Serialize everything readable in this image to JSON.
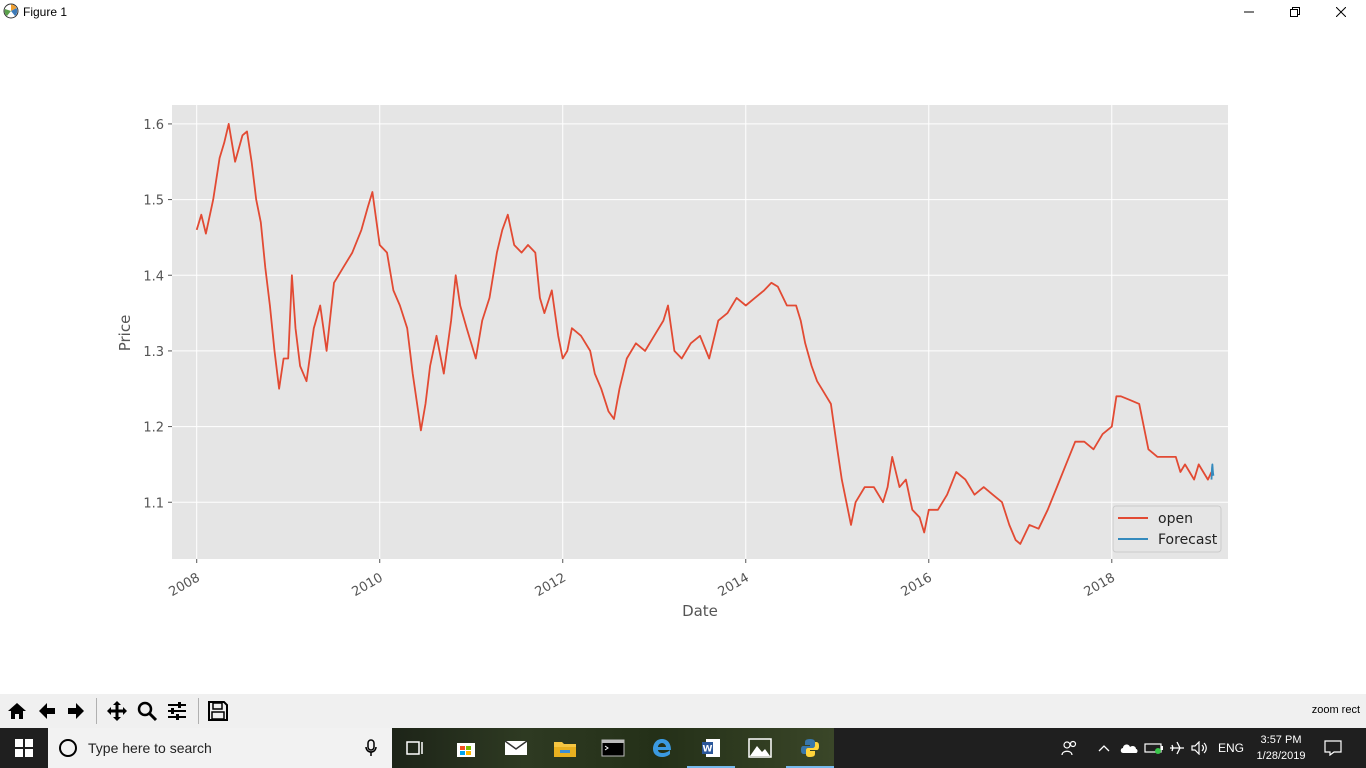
{
  "window": {
    "title": "Figure 1",
    "minimize_glyph": "—",
    "maximize_glyph": "❐",
    "close_glyph": "✕"
  },
  "chart_data": {
    "type": "line",
    "title": "",
    "xlabel": "Date",
    "ylabel": "Price",
    "xlim": [
      2007.73,
      2019.27
    ],
    "ylim": [
      1.025,
      1.625
    ],
    "xticks": [
      2008,
      2010,
      2012,
      2014,
      2016,
      2018
    ],
    "xtick_labels": [
      "2008",
      "2010",
      "2012",
      "2014",
      "2016",
      "2018"
    ],
    "yticks": [
      1.1,
      1.2,
      1.3,
      1.4,
      1.5,
      1.6
    ],
    "ytick_labels": [
      "1.1",
      "1.2",
      "1.3",
      "1.4",
      "1.5",
      "1.6"
    ],
    "grid": true,
    "legend_position": "lower-right",
    "series": [
      {
        "name": "open",
        "color": "#e24a33",
        "points": [
          [
            2008.0,
            1.46
          ],
          [
            2008.05,
            1.48
          ],
          [
            2008.1,
            1.455
          ],
          [
            2008.18,
            1.5
          ],
          [
            2008.25,
            1.555
          ],
          [
            2008.3,
            1.575
          ],
          [
            2008.35,
            1.6
          ],
          [
            2008.42,
            1.55
          ],
          [
            2008.5,
            1.585
          ],
          [
            2008.55,
            1.59
          ],
          [
            2008.6,
            1.55
          ],
          [
            2008.65,
            1.5
          ],
          [
            2008.7,
            1.47
          ],
          [
            2008.75,
            1.41
          ],
          [
            2008.8,
            1.36
          ],
          [
            2008.85,
            1.3
          ],
          [
            2008.9,
            1.25
          ],
          [
            2008.95,
            1.29
          ],
          [
            2009.0,
            1.29
          ],
          [
            2009.04,
            1.4
          ],
          [
            2009.08,
            1.33
          ],
          [
            2009.13,
            1.28
          ],
          [
            2009.2,
            1.26
          ],
          [
            2009.28,
            1.33
          ],
          [
            2009.35,
            1.36
          ],
          [
            2009.42,
            1.3
          ],
          [
            2009.5,
            1.39
          ],
          [
            2009.6,
            1.41
          ],
          [
            2009.7,
            1.43
          ],
          [
            2009.8,
            1.46
          ],
          [
            2009.87,
            1.49
          ],
          [
            2009.92,
            1.51
          ],
          [
            2010.0,
            1.44
          ],
          [
            2010.08,
            1.43
          ],
          [
            2010.15,
            1.38
          ],
          [
            2010.22,
            1.36
          ],
          [
            2010.3,
            1.33
          ],
          [
            2010.36,
            1.27
          ],
          [
            2010.42,
            1.22
          ],
          [
            2010.45,
            1.195
          ],
          [
            2010.5,
            1.23
          ],
          [
            2010.55,
            1.28
          ],
          [
            2010.62,
            1.32
          ],
          [
            2010.7,
            1.27
          ],
          [
            2010.78,
            1.34
          ],
          [
            2010.83,
            1.4
          ],
          [
            2010.88,
            1.36
          ],
          [
            2010.95,
            1.33
          ],
          [
            2011.05,
            1.29
          ],
          [
            2011.12,
            1.34
          ],
          [
            2011.2,
            1.37
          ],
          [
            2011.28,
            1.43
          ],
          [
            2011.34,
            1.46
          ],
          [
            2011.4,
            1.48
          ],
          [
            2011.47,
            1.44
          ],
          [
            2011.55,
            1.43
          ],
          [
            2011.62,
            1.44
          ],
          [
            2011.7,
            1.43
          ],
          [
            2011.75,
            1.37
          ],
          [
            2011.8,
            1.35
          ],
          [
            2011.88,
            1.38
          ],
          [
            2011.95,
            1.32
          ],
          [
            2012.0,
            1.29
          ],
          [
            2012.05,
            1.3
          ],
          [
            2012.1,
            1.33
          ],
          [
            2012.2,
            1.32
          ],
          [
            2012.3,
            1.3
          ],
          [
            2012.35,
            1.27
          ],
          [
            2012.42,
            1.25
          ],
          [
            2012.5,
            1.22
          ],
          [
            2012.56,
            1.21
          ],
          [
            2012.62,
            1.25
          ],
          [
            2012.7,
            1.29
          ],
          [
            2012.8,
            1.31
          ],
          [
            2012.9,
            1.3
          ],
          [
            2013.0,
            1.32
          ],
          [
            2013.1,
            1.34
          ],
          [
            2013.15,
            1.36
          ],
          [
            2013.22,
            1.3
          ],
          [
            2013.3,
            1.29
          ],
          [
            2013.4,
            1.31
          ],
          [
            2013.5,
            1.32
          ],
          [
            2013.6,
            1.29
          ],
          [
            2013.7,
            1.34
          ],
          [
            2013.8,
            1.35
          ],
          [
            2013.9,
            1.37
          ],
          [
            2014.0,
            1.36
          ],
          [
            2014.1,
            1.37
          ],
          [
            2014.2,
            1.38
          ],
          [
            2014.28,
            1.39
          ],
          [
            2014.35,
            1.385
          ],
          [
            2014.45,
            1.36
          ],
          [
            2014.55,
            1.36
          ],
          [
            2014.6,
            1.34
          ],
          [
            2014.65,
            1.31
          ],
          [
            2014.72,
            1.28
          ],
          [
            2014.78,
            1.26
          ],
          [
            2014.83,
            1.25
          ],
          [
            2014.88,
            1.24
          ],
          [
            2014.93,
            1.23
          ],
          [
            2015.0,
            1.17
          ],
          [
            2015.05,
            1.13
          ],
          [
            2015.1,
            1.1
          ],
          [
            2015.15,
            1.07
          ],
          [
            2015.2,
            1.1
          ],
          [
            2015.3,
            1.12
          ],
          [
            2015.4,
            1.12
          ],
          [
            2015.5,
            1.1
          ],
          [
            2015.55,
            1.12
          ],
          [
            2015.6,
            1.16
          ],
          [
            2015.68,
            1.12
          ],
          [
            2015.75,
            1.13
          ],
          [
            2015.82,
            1.09
          ],
          [
            2015.9,
            1.08
          ],
          [
            2015.95,
            1.06
          ],
          [
            2016.0,
            1.09
          ],
          [
            2016.1,
            1.09
          ],
          [
            2016.2,
            1.11
          ],
          [
            2016.3,
            1.14
          ],
          [
            2016.4,
            1.13
          ],
          [
            2016.5,
            1.11
          ],
          [
            2016.6,
            1.12
          ],
          [
            2016.7,
            1.11
          ],
          [
            2016.8,
            1.1
          ],
          [
            2016.88,
            1.07
          ],
          [
            2016.95,
            1.05
          ],
          [
            2017.0,
            1.045
          ],
          [
            2017.1,
            1.07
          ],
          [
            2017.2,
            1.065
          ],
          [
            2017.3,
            1.09
          ],
          [
            2017.4,
            1.12
          ],
          [
            2017.5,
            1.15
          ],
          [
            2017.6,
            1.18
          ],
          [
            2017.7,
            1.18
          ],
          [
            2017.8,
            1.17
          ],
          [
            2017.9,
            1.19
          ],
          [
            2018.0,
            1.2
          ],
          [
            2018.05,
            1.24
          ],
          [
            2018.1,
            1.24
          ],
          [
            2018.2,
            1.235
          ],
          [
            2018.3,
            1.23
          ],
          [
            2018.35,
            1.2
          ],
          [
            2018.4,
            1.17
          ],
          [
            2018.5,
            1.16
          ],
          [
            2018.6,
            1.16
          ],
          [
            2018.7,
            1.16
          ],
          [
            2018.75,
            1.14
          ],
          [
            2018.8,
            1.15
          ],
          [
            2018.85,
            1.14
          ],
          [
            2018.9,
            1.13
          ],
          [
            2018.95,
            1.15
          ],
          [
            2019.0,
            1.14
          ],
          [
            2019.05,
            1.13
          ],
          [
            2019.09,
            1.14
          ]
        ]
      },
      {
        "name": "Forecast",
        "color": "#348abd",
        "points": [
          [
            2019.09,
            1.13
          ],
          [
            2019.095,
            1.145
          ],
          [
            2019.1,
            1.15
          ],
          [
            2019.105,
            1.14
          ],
          [
            2019.11,
            1.135
          ]
        ]
      }
    ]
  },
  "toolbar": {
    "buttons": [
      "home-icon",
      "back-icon",
      "forward-icon",
      "pan-icon",
      "zoom-icon",
      "configure-subplots-icon",
      "save-icon"
    ],
    "status": "zoom rect"
  },
  "taskbar": {
    "search_placeholder": "Type here to search",
    "language": "ENG",
    "time": "3:57 PM",
    "date": "1/28/2019"
  }
}
